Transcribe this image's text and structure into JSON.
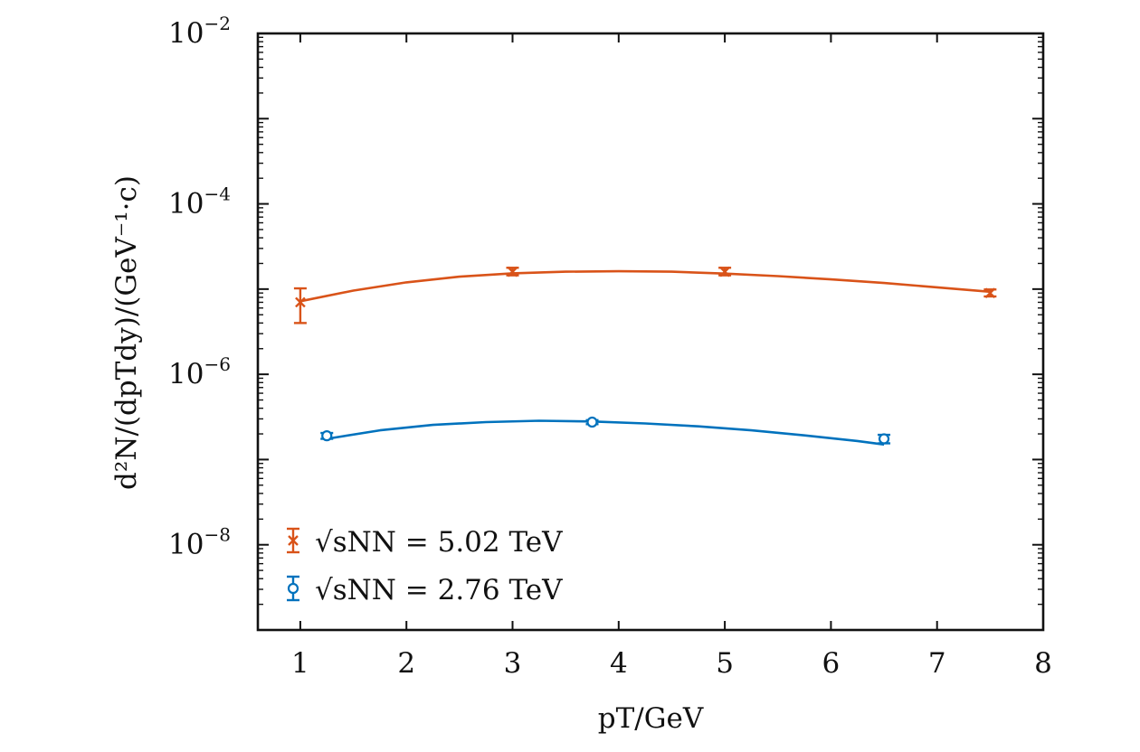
{
  "chart_data": {
    "type": "line",
    "title": "",
    "xlabel": "pT/GeV",
    "ylabel": "d²N/(dpTdy)/(GeV⁻¹·c)",
    "xlim": [
      0.6,
      8
    ],
    "ylim_log10": [
      -9,
      -2
    ],
    "y_scale": "log",
    "grid": false,
    "legend_position": "lower-left",
    "x_ticks": [
      1,
      2,
      3,
      4,
      5,
      6,
      7,
      8
    ],
    "x_tick_labels": [
      "1",
      "2",
      "3",
      "4",
      "5",
      "6",
      "7",
      "8"
    ],
    "y_ticks": [
      {
        "base": "10",
        "exponent": "−2",
        "log10": -2
      },
      {
        "base": "10",
        "exponent": "−4",
        "log10": -4
      },
      {
        "base": "10",
        "exponent": "−6",
        "log10": -6
      },
      {
        "base": "10",
        "exponent": "−8",
        "log10": -8
      }
    ],
    "series": [
      {
        "name": "√sNN = 5.02 TeV",
        "legend_label": "√sNN = 5.02 TeV",
        "color": "#d95319",
        "marker": "x",
        "x": [
          1.0,
          3.0,
          5.0,
          7.5
        ],
        "y": [
          7e-06,
          1.6e-05,
          1.6e-05,
          9e-06
        ],
        "y_err_low": [
          3e-06,
          1.5e-06,
          1.5e-06,
          8e-07
        ],
        "y_err_high": [
          3.2e-06,
          1.8e-06,
          1.8e-06,
          9e-07
        ],
        "fit_x": [
          1.0,
          1.5,
          2.0,
          2.5,
          3.0,
          3.5,
          4.0,
          4.5,
          5.0,
          5.5,
          6.0,
          6.5,
          7.0,
          7.5
        ],
        "fit_y": [
          7.2e-06,
          9.6e-06,
          1.2e-05,
          1.4e-05,
          1.53e-05,
          1.6e-05,
          1.62e-05,
          1.6e-05,
          1.52e-05,
          1.42e-05,
          1.3e-05,
          1.18e-05,
          1.05e-05,
          9.3e-06
        ]
      },
      {
        "name": "√sNN = 2.76 TeV",
        "legend_label": "√sNN = 2.76 TeV",
        "color": "#0072bd",
        "marker": "o",
        "x": [
          1.25,
          3.75,
          6.5
        ],
        "y": [
          1.9e-07,
          2.75e-07,
          1.75e-07
        ],
        "y_err_low": [
          1.5e-08,
          1.5e-08,
          2e-08
        ],
        "y_err_high": [
          1.5e-08,
          1.5e-08,
          2e-08
        ],
        "fit_x": [
          1.25,
          1.75,
          2.25,
          2.75,
          3.25,
          3.75,
          4.25,
          4.75,
          5.25,
          5.75,
          6.25,
          6.5
        ],
        "fit_y": [
          1.75e-07,
          2.2e-07,
          2.55e-07,
          2.75e-07,
          2.85e-07,
          2.8e-07,
          2.65e-07,
          2.45e-07,
          2.2e-07,
          1.92e-07,
          1.65e-07,
          1.5e-07
        ]
      }
    ]
  }
}
